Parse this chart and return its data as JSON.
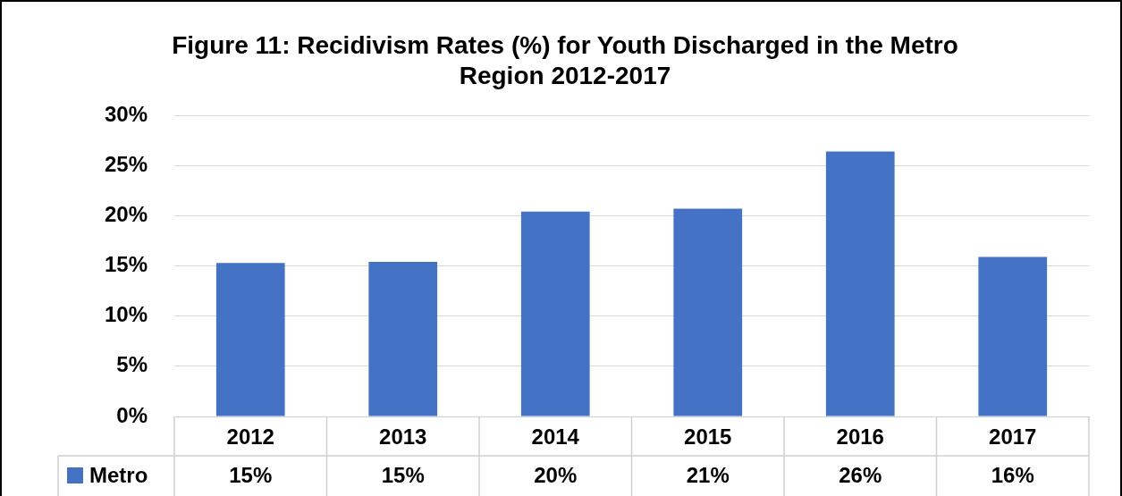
{
  "chart_data": {
    "type": "bar",
    "title": "Figure 11: Recidivism Rates (%) for Youth Discharged in the Metro Region 2012-2017",
    "categories": [
      "2012",
      "2013",
      "2014",
      "2015",
      "2016",
      "2017"
    ],
    "series": [
      {
        "name": "Metro",
        "color": "#4472c4",
        "values": [
          15.3,
          15.4,
          20.4,
          20.7,
          26.4,
          15.9
        ],
        "value_labels": [
          "15%",
          "15%",
          "20%",
          "21%",
          "26%",
          "16%"
        ]
      }
    ],
    "ylim": [
      0,
      30
    ],
    "yticks": [
      {
        "value": 0,
        "label": "0%"
      },
      {
        "value": 5,
        "label": "5%"
      },
      {
        "value": 10,
        "label": "10%"
      },
      {
        "value": 15,
        "label": "15%"
      },
      {
        "value": 20,
        "label": "20%"
      },
      {
        "value": 25,
        "label": "25%"
      },
      {
        "value": 30,
        "label": "30%"
      }
    ],
    "grid": "y",
    "legend": "bottom left"
  }
}
